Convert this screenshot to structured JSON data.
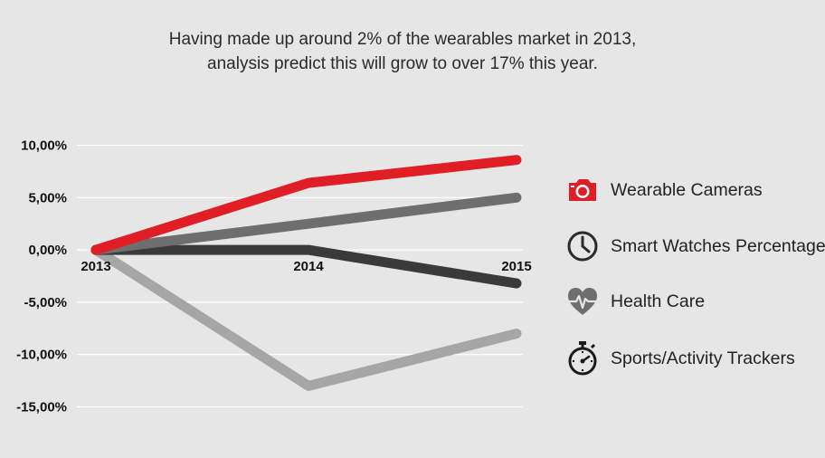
{
  "header": {
    "subtitle_line1": "Having made up around 2% of the wearables market in 2013,",
    "subtitle_line2": "analysis predict this will grow to over 17% this year."
  },
  "chart_data": {
    "type": "line",
    "title": "",
    "subtitle": "Having made up around 2% of the wearables market in 2013, analysis predict this will grow to over 17% this year.",
    "xlabel": "",
    "ylabel": "",
    "categories": [
      "2013",
      "2014",
      "2015"
    ],
    "ylim": [
      -15,
      10
    ],
    "yticks": [
      10,
      5,
      0,
      -5,
      -10,
      -15
    ],
    "ytick_labels": [
      "10,00%",
      "5,00%",
      "0,00%",
      "-5,00%",
      "-10,00%",
      "-15,00%"
    ],
    "grid": true,
    "legend_position": "right",
    "series": [
      {
        "name": "Sports/Activity Trackers",
        "color": "#a6a6a6",
        "icon": "stopwatch-icon",
        "values": [
          0,
          -13,
          -8
        ]
      },
      {
        "name": "Smart Watches Percentage",
        "color": "#3a3a3a",
        "icon": "clock-icon",
        "values": [
          0,
          0,
          -3.2
        ]
      },
      {
        "name": "Health Care",
        "color": "#6e6e6e",
        "icon": "heart-pulse-icon",
        "values": [
          0,
          2.5,
          5
        ]
      },
      {
        "name": "Wearable Cameras",
        "color": "#e01e26",
        "icon": "camera-icon",
        "values": [
          0,
          6.4,
          8.6
        ]
      }
    ],
    "legend_order": [
      "Wearable Cameras",
      "Smart Watches Percentage",
      "Health Care",
      "Sports/Activity Trackers"
    ]
  }
}
